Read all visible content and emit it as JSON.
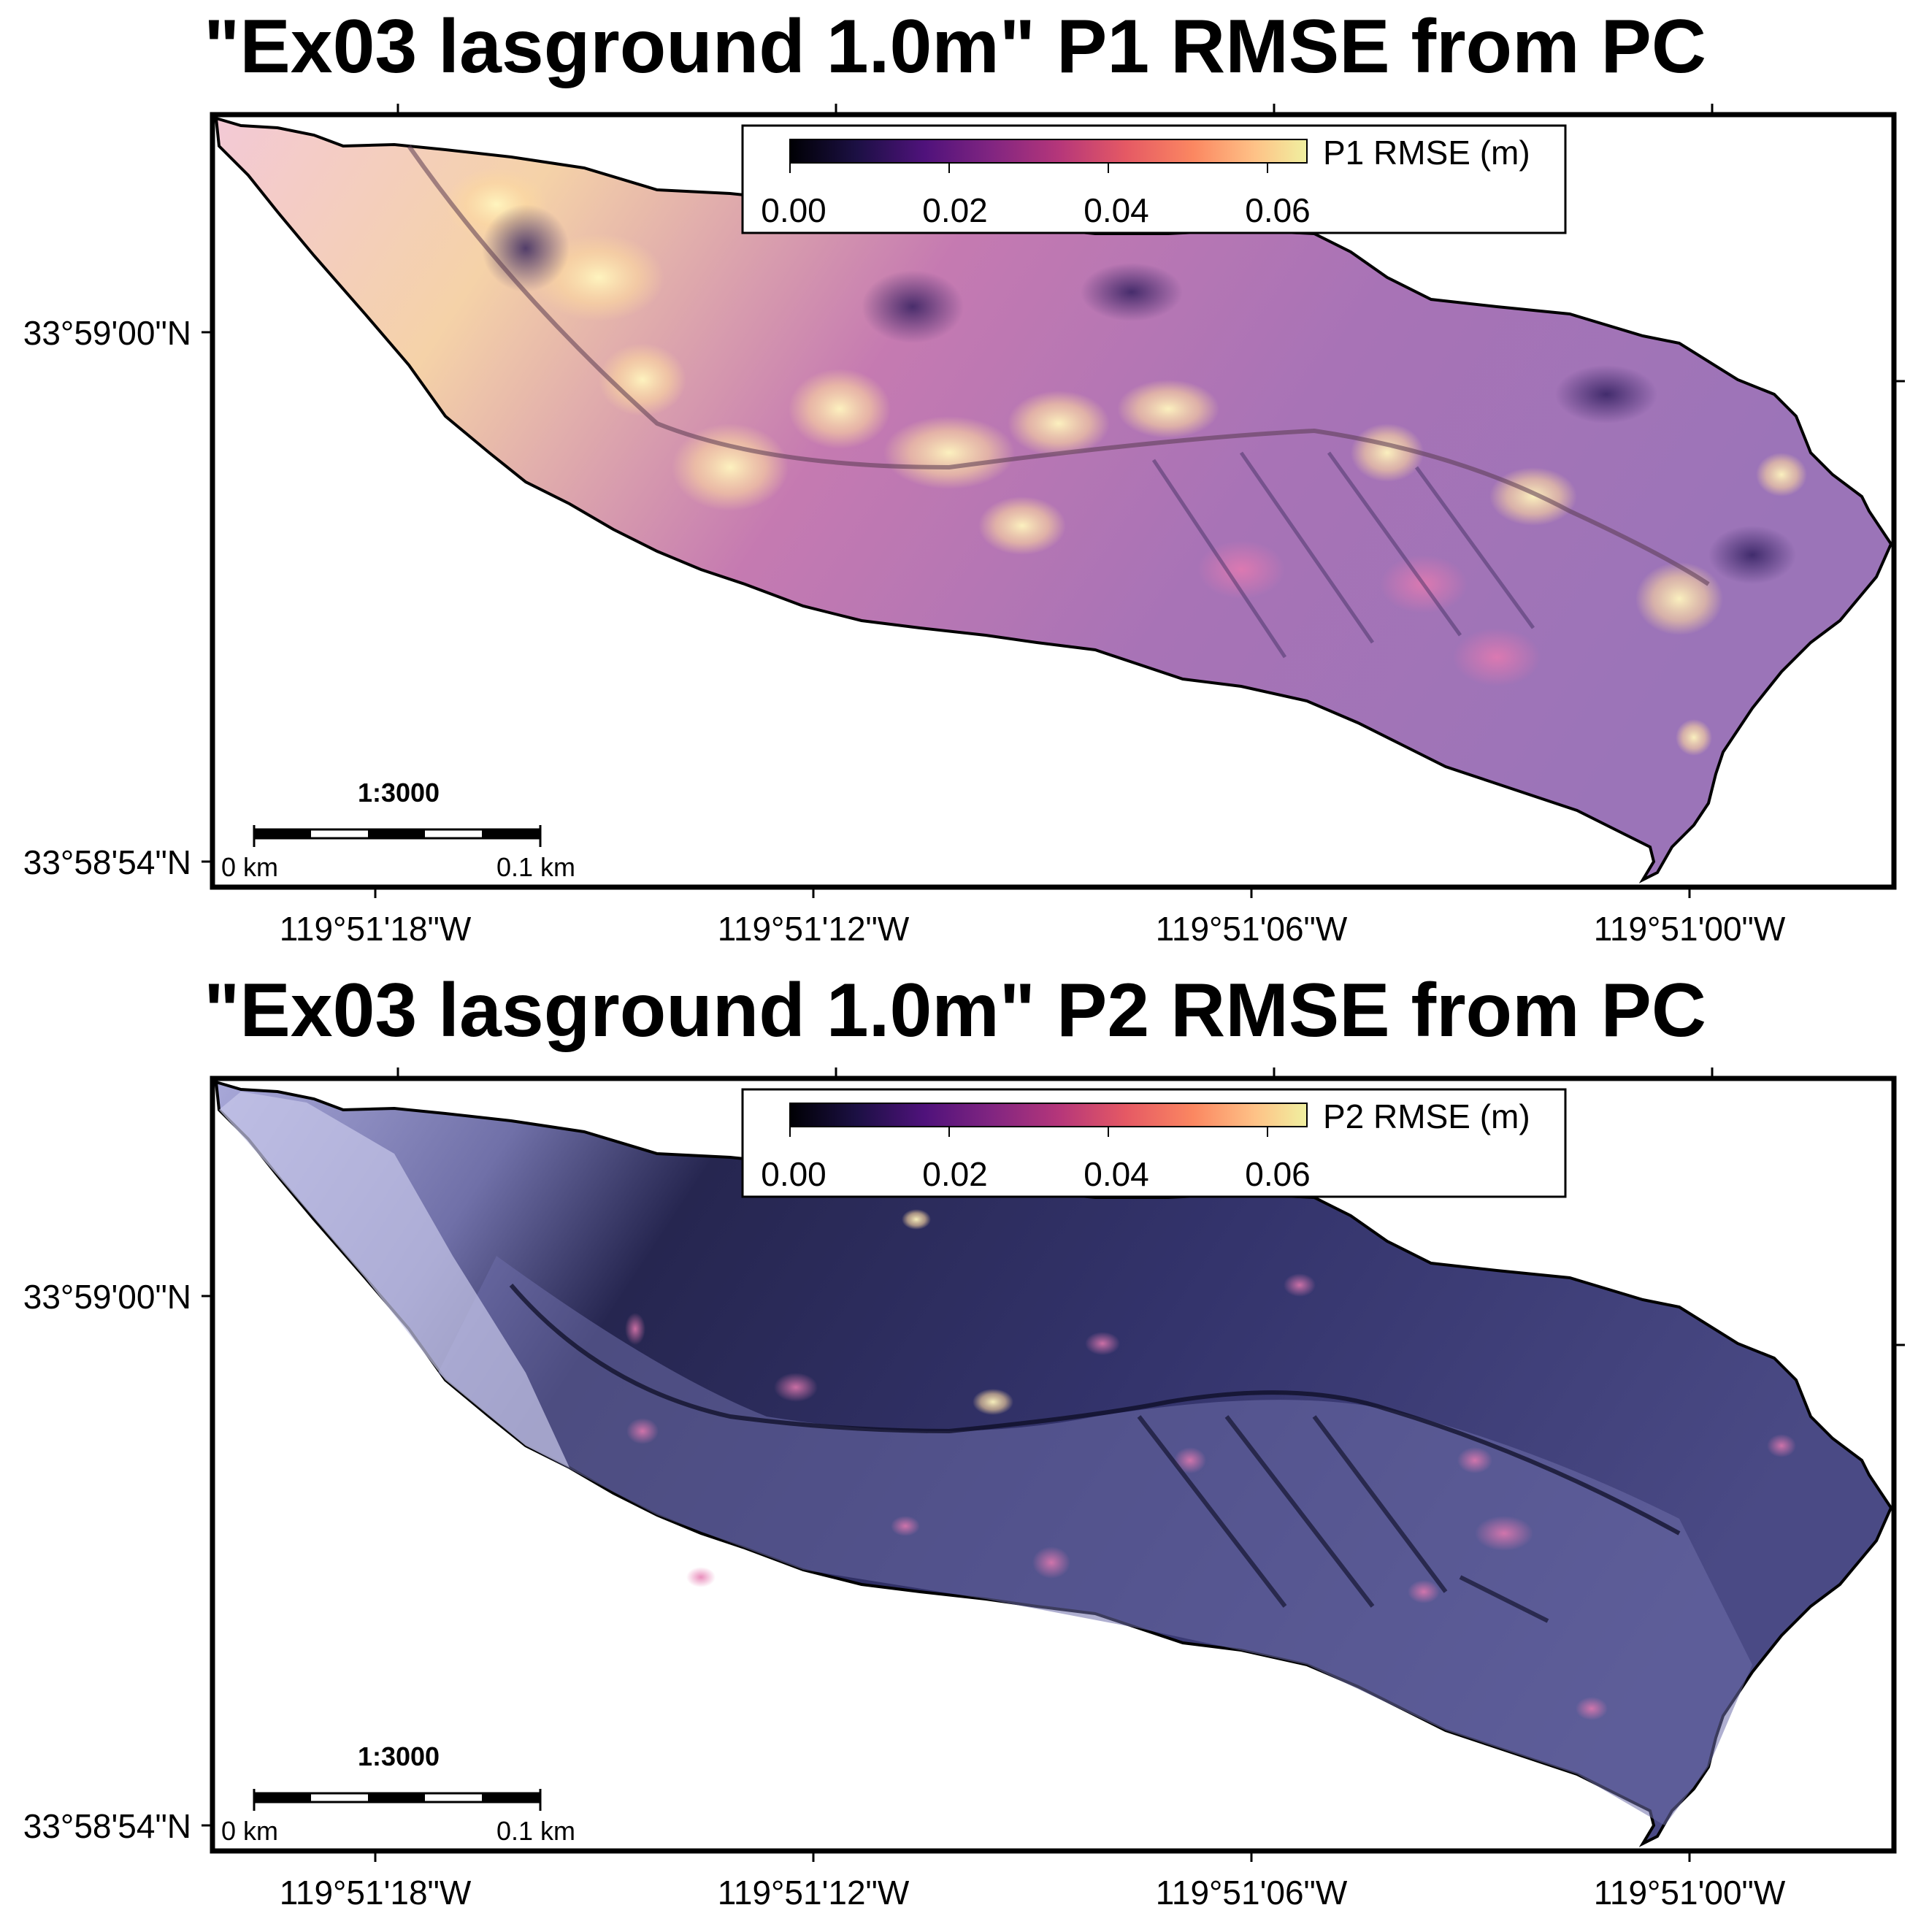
{
  "panels": [
    {
      "title": "\"Ex03 lasground 1.0m\" P1 RMSE from PC",
      "colorbar": {
        "label": "P1 RMSE (m)",
        "ticks": [
          "0.00",
          "0.02",
          "0.04",
          "0.06"
        ],
        "range": [
          0.0,
          0.065
        ],
        "colormap": "magma"
      },
      "lat_ticks": [
        "33°59'00\"N",
        "33°58'54\"N"
      ],
      "lon_ticks": [
        "119°51'18\"W",
        "119°51'12\"W",
        "119°51'06\"W",
        "119°51'00\"W"
      ],
      "scale_bar": {
        "ratio": "1:3000",
        "start": "0 km",
        "end": "0.1 km"
      },
      "overall_tone": "bright"
    },
    {
      "title": "\"Ex03 lasground 1.0m\" P2 RMSE from PC",
      "colorbar": {
        "label": "P2 RMSE (m)",
        "ticks": [
          "0.00",
          "0.02",
          "0.04",
          "0.06"
        ],
        "range": [
          0.0,
          0.065
        ],
        "colormap": "magma"
      },
      "lat_ticks": [
        "33°59'00\"N",
        "33°58'54\"N"
      ],
      "lon_ticks": [
        "119°51'18\"W",
        "119°51'12\"W",
        "119°51'06\"W",
        "119°51'00\"W"
      ],
      "scale_bar": {
        "ratio": "1:3000",
        "start": "0 km",
        "end": "0.1 km"
      },
      "overall_tone": "dark"
    }
  ],
  "colors": {
    "magma": [
      "#000004",
      "#1c1044",
      "#4f127b",
      "#812581",
      "#b5367a",
      "#e55964",
      "#fb8761",
      "#fec287",
      "#f0f0a0"
    ],
    "frame": "#000000",
    "background": "#ffffff"
  }
}
